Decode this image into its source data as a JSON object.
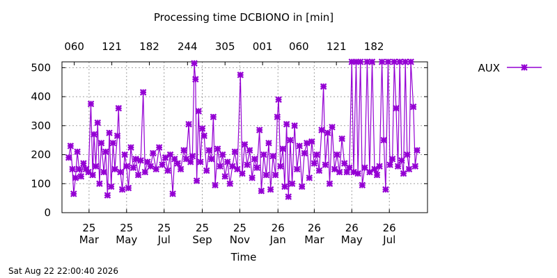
{
  "chart_data": {
    "type": "line",
    "title": "Processing time DCBIONO in [min]",
    "xlabel": "Time",
    "ylabel": "",
    "ylim": [
      0,
      520
    ],
    "yticks": [
      0,
      100,
      200,
      300,
      400,
      500
    ],
    "x_range": [
      "2025-02-09",
      "2026-09-26"
    ],
    "x_ticks_bottom": [
      {
        "date": "2025-03-25",
        "day": "25",
        "month": "Mar"
      },
      {
        "date": "2025-05-25",
        "day": "25",
        "month": "May"
      },
      {
        "date": "2025-07-25",
        "day": "25",
        "month": "Jul"
      },
      {
        "date": "2025-09-25",
        "day": "25",
        "month": "Sep"
      },
      {
        "date": "2025-11-25",
        "day": "25",
        "month": "Nov"
      },
      {
        "date": "2026-01-26",
        "day": "26",
        "month": "Jan"
      },
      {
        "date": "2026-03-26",
        "day": "26",
        "month": "Mar"
      },
      {
        "date": "2026-05-26",
        "day": "26",
        "month": "May"
      },
      {
        "date": "2026-07-26",
        "day": "26",
        "month": "Jul"
      }
    ],
    "x_ticks_top": [
      {
        "date": "2025-03-01",
        "label": "060"
      },
      {
        "date": "2025-05-01",
        "label": "121"
      },
      {
        "date": "2025-07-01",
        "label": "182"
      },
      {
        "date": "2025-09-01",
        "label": "244"
      },
      {
        "date": "2025-11-01",
        "label": "305"
      },
      {
        "date": "2026-01-01",
        "label": "001"
      },
      {
        "date": "2026-03-01",
        "label": "060"
      },
      {
        "date": "2026-05-01",
        "label": "121"
      },
      {
        "date": "2026-07-01",
        "label": "182"
      }
    ],
    "grid": true,
    "legend_position": "top-right-outside",
    "series": [
      {
        "name": "AUX",
        "color": "#9400d3",
        "points": [
          [
            "2025-02-20",
            190
          ],
          [
            "2025-02-23",
            230
          ],
          [
            "2025-02-26",
            150
          ],
          [
            "2025-02-28",
            65
          ],
          [
            "2025-03-03",
            120
          ],
          [
            "2025-03-06",
            210
          ],
          [
            "2025-03-09",
            150
          ],
          [
            "2025-03-12",
            125
          ],
          [
            "2025-03-16",
            170
          ],
          [
            "2025-03-20",
            150
          ],
          [
            "2025-03-24",
            140
          ],
          [
            "2025-03-28",
            375
          ],
          [
            "2025-03-31",
            130
          ],
          [
            "2025-04-02",
            270
          ],
          [
            "2025-04-05",
            160
          ],
          [
            "2025-04-08",
            310
          ],
          [
            "2025-04-11",
            100
          ],
          [
            "2025-04-14",
            240
          ],
          [
            "2025-04-18",
            140
          ],
          [
            "2025-04-21",
            210
          ],
          [
            "2025-04-24",
            60
          ],
          [
            "2025-04-27",
            275
          ],
          [
            "2025-04-30",
            90
          ],
          [
            "2025-05-03",
            240
          ],
          [
            "2025-05-06",
            150
          ],
          [
            "2025-05-10",
            265
          ],
          [
            "2025-05-12",
            360
          ],
          [
            "2025-05-15",
            140
          ],
          [
            "2025-05-18",
            80
          ],
          [
            "2025-05-22",
            200
          ],
          [
            "2025-05-25",
            160
          ],
          [
            "2025-05-28",
            85
          ],
          [
            "2025-06-01",
            225
          ],
          [
            "2025-06-05",
            155
          ],
          [
            "2025-06-09",
            185
          ],
          [
            "2025-06-13",
            130
          ],
          [
            "2025-06-17",
            180
          ],
          [
            "2025-06-21",
            415
          ],
          [
            "2025-06-24",
            140
          ],
          [
            "2025-06-28",
            175
          ],
          [
            "2025-07-03",
            160
          ],
          [
            "2025-07-07",
            205
          ],
          [
            "2025-07-12",
            150
          ],
          [
            "2025-07-17",
            225
          ],
          [
            "2025-07-22",
            165
          ],
          [
            "2025-07-27",
            190
          ],
          [
            "2025-07-31",
            145
          ],
          [
            "2025-08-04",
            200
          ],
          [
            "2025-08-08",
            65
          ],
          [
            "2025-08-11",
            185
          ],
          [
            "2025-08-16",
            170
          ],
          [
            "2025-08-21",
            150
          ],
          [
            "2025-08-26",
            215
          ],
          [
            "2025-08-30",
            185
          ],
          [
            "2025-09-03",
            305
          ],
          [
            "2025-09-06",
            175
          ],
          [
            "2025-09-09",
            195
          ],
          [
            "2025-09-12",
            515
          ],
          [
            "2025-09-14",
            460
          ],
          [
            "2025-09-16",
            110
          ],
          [
            "2025-09-19",
            350
          ],
          [
            "2025-09-22",
            175
          ],
          [
            "2025-09-25",
            290
          ],
          [
            "2025-09-28",
            265
          ],
          [
            "2025-10-02",
            145
          ],
          [
            "2025-10-06",
            215
          ],
          [
            "2025-10-10",
            185
          ],
          [
            "2025-10-13",
            330
          ],
          [
            "2025-10-16",
            95
          ],
          [
            "2025-10-20",
            220
          ],
          [
            "2025-10-24",
            160
          ],
          [
            "2025-10-28",
            200
          ],
          [
            "2025-11-01",
            125
          ],
          [
            "2025-11-05",
            175
          ],
          [
            "2025-11-09",
            100
          ],
          [
            "2025-11-13",
            160
          ],
          [
            "2025-11-17",
            210
          ],
          [
            "2025-11-21",
            150
          ],
          [
            "2025-11-26",
            475
          ],
          [
            "2025-11-29",
            135
          ],
          [
            "2025-12-03",
            235
          ],
          [
            "2025-12-07",
            165
          ],
          [
            "2025-12-11",
            215
          ],
          [
            "2025-12-15",
            120
          ],
          [
            "2025-12-19",
            185
          ],
          [
            "2025-12-23",
            155
          ],
          [
            "2025-12-27",
            285
          ],
          [
            "2025-12-30",
            75
          ],
          [
            "2026-01-03",
            200
          ],
          [
            "2026-01-07",
            130
          ],
          [
            "2026-01-11",
            240
          ],
          [
            "2026-01-14",
            80
          ],
          [
            "2026-01-18",
            195
          ],
          [
            "2026-01-22",
            130
          ],
          [
            "2026-01-25",
            330
          ],
          [
            "2026-01-27",
            390
          ],
          [
            "2026-01-30",
            160
          ],
          [
            "2026-02-03",
            220
          ],
          [
            "2026-02-06",
            90
          ],
          [
            "2026-02-09",
            305
          ],
          [
            "2026-02-12",
            55
          ],
          [
            "2026-02-15",
            250
          ],
          [
            "2026-02-18",
            100
          ],
          [
            "2026-02-22",
            300
          ],
          [
            "2026-02-26",
            150
          ],
          [
            "2026-03-02",
            230
          ],
          [
            "2026-03-06",
            90
          ],
          [
            "2026-03-10",
            205
          ],
          [
            "2026-03-14",
            240
          ],
          [
            "2026-03-18",
            120
          ],
          [
            "2026-03-22",
            245
          ],
          [
            "2026-03-26",
            170
          ],
          [
            "2026-03-30",
            200
          ],
          [
            "2026-04-03",
            145
          ],
          [
            "2026-04-07",
            285
          ],
          [
            "2026-04-10",
            435
          ],
          [
            "2026-04-13",
            165
          ],
          [
            "2026-04-17",
            275
          ],
          [
            "2026-04-20",
            100
          ],
          [
            "2026-04-24",
            295
          ],
          [
            "2026-04-28",
            150
          ],
          [
            "2026-05-02",
            200
          ],
          [
            "2026-05-06",
            140
          ],
          [
            "2026-05-10",
            255
          ],
          [
            "2026-05-14",
            170
          ],
          [
            "2026-05-18",
            140
          ],
          [
            "2026-05-22",
            155
          ],
          [
            "2026-05-26",
            520
          ],
          [
            "2026-05-29",
            140
          ],
          [
            "2026-06-02",
            520
          ],
          [
            "2026-06-05",
            135
          ],
          [
            "2026-06-09",
            520
          ],
          [
            "2026-06-12",
            95
          ],
          [
            "2026-06-16",
            155
          ],
          [
            "2026-06-20",
            520
          ],
          [
            "2026-06-24",
            140
          ],
          [
            "2026-06-28",
            520
          ],
          [
            "2026-07-02",
            150
          ],
          [
            "2026-07-06",
            130
          ],
          [
            "2026-07-10",
            160
          ],
          [
            "2026-07-14",
            520
          ],
          [
            "2026-07-17",
            250
          ],
          [
            "2026-07-20",
            80
          ],
          [
            "2026-07-24",
            520
          ],
          [
            "2026-07-27",
            165
          ],
          [
            "2026-07-31",
            185
          ],
          [
            "2026-08-03",
            520
          ],
          [
            "2026-08-06",
            360
          ],
          [
            "2026-08-09",
            160
          ],
          [
            "2026-08-12",
            520
          ],
          [
            "2026-08-15",
            180
          ],
          [
            "2026-08-18",
            135
          ],
          [
            "2026-08-21",
            520
          ],
          [
            "2026-08-24",
            200
          ],
          [
            "2026-08-27",
            150
          ],
          [
            "2026-08-30",
            520
          ],
          [
            "2026-09-03",
            365
          ],
          [
            "2026-09-06",
            160
          ],
          [
            "2026-09-09",
            215
          ]
        ]
      }
    ]
  },
  "footer": {
    "timestamp": "Sat Aug 22 22:00:40 2026"
  }
}
